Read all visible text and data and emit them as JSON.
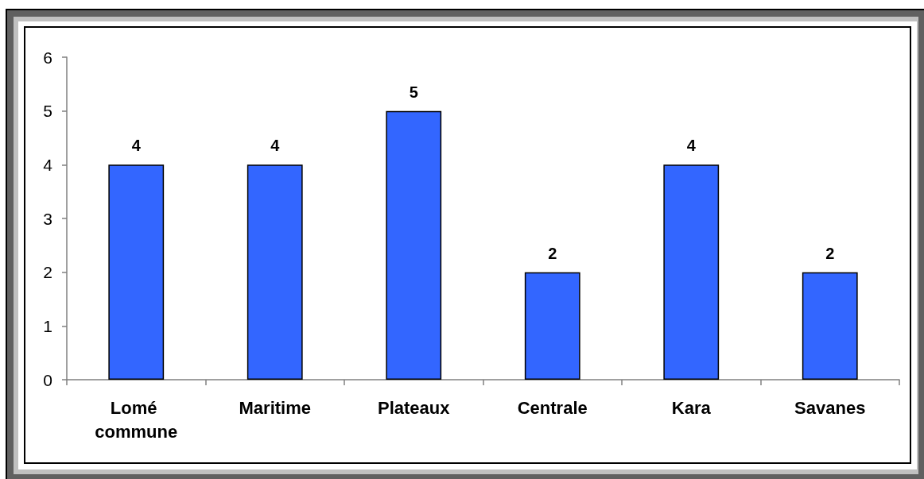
{
  "chart_data": {
    "type": "bar",
    "categories": [
      "Lomé commune",
      "Maritime",
      "Plateaux",
      "Centrale",
      "Kara",
      "Savanes"
    ],
    "values": [
      4,
      4,
      5,
      2,
      4,
      2
    ],
    "color": "#3366ff",
    "ylim": [
      0,
      6
    ],
    "yticks": [
      0,
      1,
      2,
      3,
      4,
      5,
      6
    ],
    "grid": false,
    "data_labels": true
  }
}
